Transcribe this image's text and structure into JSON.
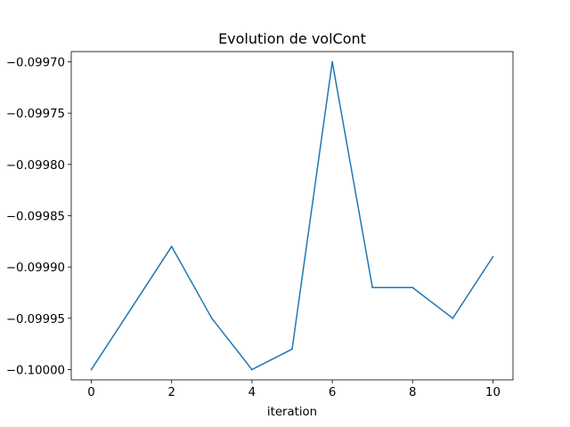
{
  "chart_data": {
    "type": "line",
    "title": "Evolution de volCont",
    "xlabel": "iteration",
    "ylabel": "",
    "x": [
      0,
      1,
      2,
      3,
      4,
      5,
      6,
      7,
      8,
      9,
      10
    ],
    "series": [
      {
        "color": "#1f77b4",
        "values": [
          -0.1,
          -0.09994,
          -0.09988,
          -0.09995,
          -0.1,
          -0.09998,
          -0.0997,
          -0.09992,
          -0.09992,
          -0.09995,
          -0.09989
        ]
      }
    ],
    "xlim": [
      -0.5,
      10.5
    ],
    "ylim": [
      -0.10001,
      -0.09969
    ],
    "xticks": [
      0,
      2,
      4,
      6,
      8,
      10
    ],
    "xtick_labels": [
      "0",
      "2",
      "4",
      "6",
      "8",
      "10"
    ],
    "yticks": [
      -0.1,
      -0.09995,
      -0.0999,
      -0.09985,
      -0.0998,
      -0.09975,
      -0.0997
    ],
    "ytick_labels": [
      "−0.10000",
      "−0.09995",
      "−0.09990",
      "−0.09985",
      "−0.09980",
      "−0.09975",
      "−0.09970"
    ],
    "grid": false,
    "legend": "none"
  }
}
